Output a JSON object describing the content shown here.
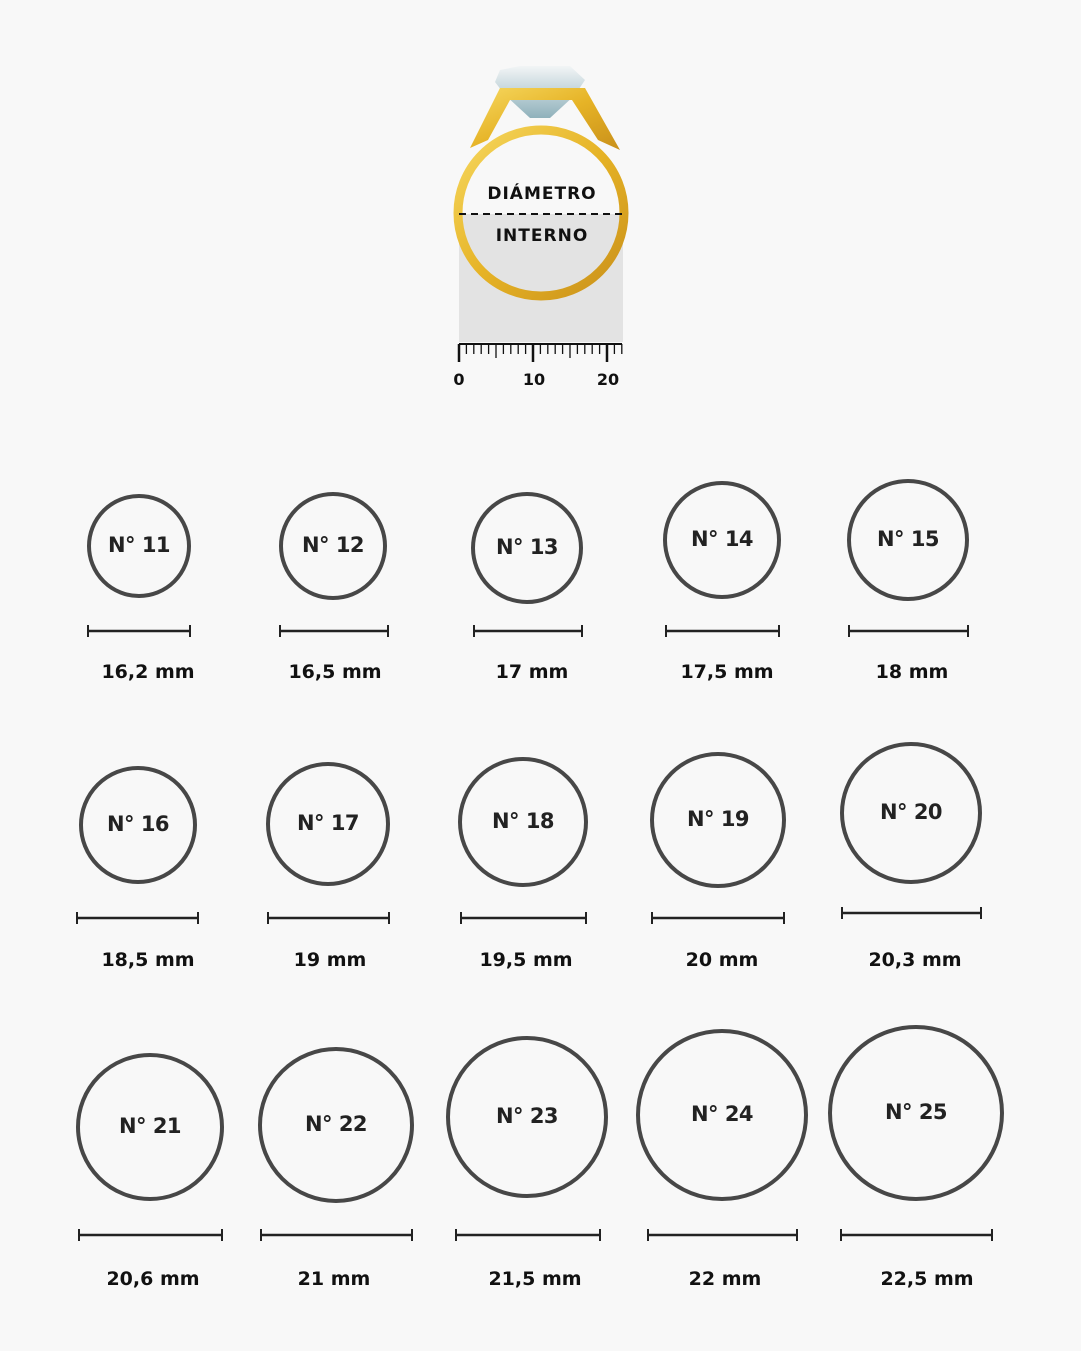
{
  "ring_diagram": {
    "label_top": "DIÁMETRO",
    "label_bottom": "INTERNO",
    "ruler_ticks": [
      "0",
      "10",
      "20"
    ],
    "colors": {
      "gold": "#e8b92a",
      "gold_dark": "#c9961a",
      "gem": "#b9cfd6",
      "shade": "#e2e2e2"
    }
  },
  "sizes": [
    {
      "name": "N° 11",
      "diameter": "16,2 mm"
    },
    {
      "name": "N° 12",
      "diameter": "16,5 mm"
    },
    {
      "name": "N° 13",
      "diameter": "17 mm"
    },
    {
      "name": "N° 14",
      "diameter": "17,5 mm"
    },
    {
      "name": "N° 15",
      "diameter": "18 mm"
    },
    {
      "name": "N° 16",
      "diameter": "18,5 mm"
    },
    {
      "name": "N° 17",
      "diameter": "19 mm"
    },
    {
      "name": "N° 18",
      "diameter": "19,5 mm"
    },
    {
      "name": "N° 19",
      "diameter": "20 mm"
    },
    {
      "name": "N° 20",
      "diameter": "20,3 mm"
    },
    {
      "name": "N° 21",
      "diameter": "20,6 mm"
    },
    {
      "name": "N° 22",
      "diameter": "21 mm"
    },
    {
      "name": "N° 23",
      "diameter": "21,5 mm"
    },
    {
      "name": "N° 24",
      "diameter": "22 mm"
    },
    {
      "name": "N° 25",
      "diameter": "22,5 mm"
    }
  ],
  "colors": {
    "outline": "#474747",
    "background": "#f8f8f8"
  }
}
